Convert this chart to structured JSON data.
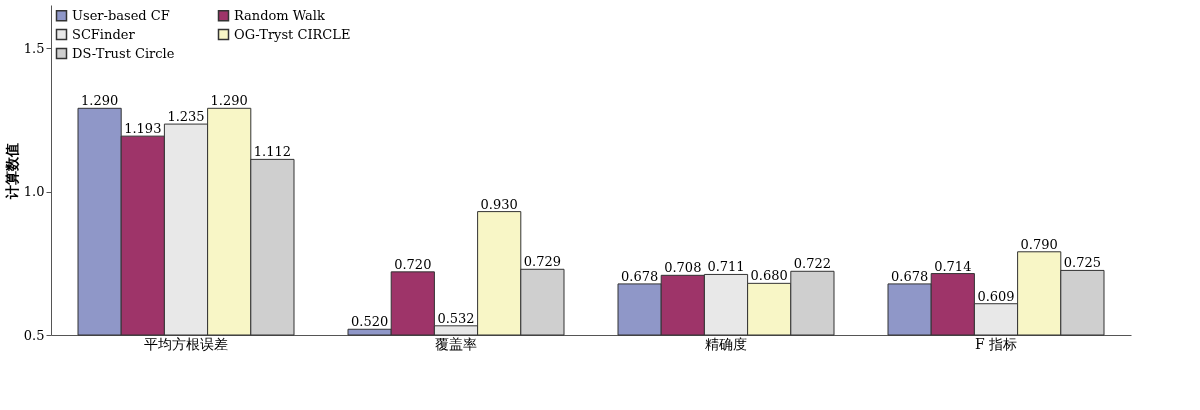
{
  "chart_data": {
    "type": "bar",
    "ylabel": "计算数值",
    "categories": [
      "平均方根误差",
      "覆盖率",
      "精确度",
      "F 指标"
    ],
    "series": [
      {
        "name": "User-based CF",
        "color": "#8f97c8",
        "values": [
          1.29,
          0.52,
          0.678,
          0.678
        ],
        "value_labels": [
          "1.290",
          "0.520",
          "0.678",
          "0.678"
        ]
      },
      {
        "name": "Random Walk",
        "color": "#9e3469",
        "values": [
          1.193,
          0.72,
          0.708,
          0.714
        ],
        "value_labels": [
          "1.193",
          "0.720",
          "0.708",
          "0.714"
        ]
      },
      {
        "name": "SCFinder",
        "color": "#e8e8e8",
        "values": [
          1.235,
          0.532,
          0.711,
          0.609
        ],
        "value_labels": [
          "1.235",
          "0.532",
          "0.711",
          "0.609"
        ]
      },
      {
        "name": "OG-Tryst CIRCLE",
        "color": "#f8f6c6",
        "values": [
          1.29,
          0.93,
          0.68,
          0.79
        ],
        "value_labels": [
          "1.290",
          "0.930",
          "0.680",
          "0.790"
        ]
      },
      {
        "name": "DS-Trust Circle",
        "color": "#cfcfcf",
        "values": [
          1.112,
          0.729,
          0.722,
          0.725
        ],
        "value_labels": [
          "1.112",
          "0.729",
          "0.722",
          "0.725"
        ]
      }
    ],
    "ylim": [
      0.5,
      1.65
    ],
    "yticks": [
      0.5,
      {
        "value": 1.0,
        "label": "1.0"
      },
      1.5
    ],
    "grid": false,
    "legend": "top left"
  }
}
